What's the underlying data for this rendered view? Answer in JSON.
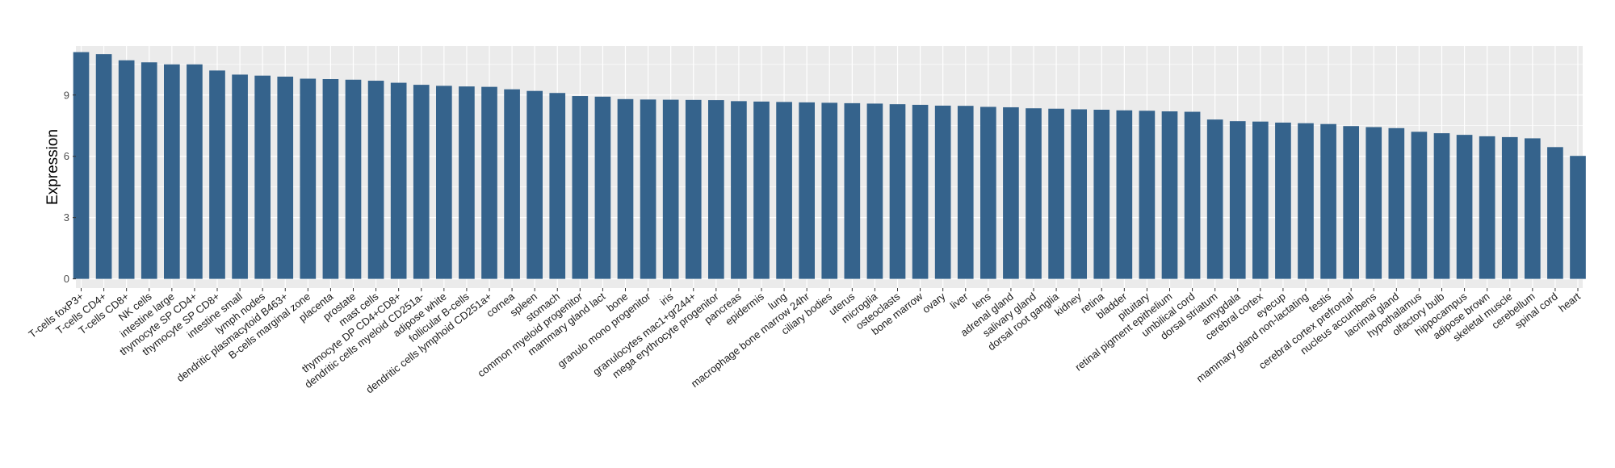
{
  "chart_data": {
    "type": "bar",
    "xlabel": "",
    "ylabel": "Expression",
    "ylim": [
      -0.45,
      11.4
    ],
    "yticks": [
      0,
      3,
      6,
      9
    ],
    "grid": true,
    "legend": "none",
    "colors": {
      "bar": "#35638C",
      "panel": "#EBEBEB",
      "grid": "#FFFFFF"
    },
    "categories": [
      "T-cells foxP3+",
      "T-cells CD4+",
      "T-cells CD8+",
      "NK cells",
      "intestine large",
      "thymocyte SP CD4+",
      "thymocyte SP CD8+",
      "intestine small",
      "lymph nodes",
      "dendritic plasmacytoid B463+",
      "B-cells marginal zone",
      "placenta",
      "prostate",
      "mast cells",
      "thymocyte DP CD4+CD8+",
      "dendritic cells myeloid CD251a-",
      "adipose white",
      "follicular B-cells",
      "dendritic cells lymphoid CD251a+",
      "cornea",
      "spleen",
      "stomach",
      "common myeloid progenitor",
      "mammary gland  lact",
      "bone",
      "granulo mono progenitor",
      "iris",
      "granulocytes mac1+gr244+",
      "mega erythrocyte progenitor",
      "pancreas",
      "epidermis",
      "lung",
      "macrophage bone marrow 24hr",
      "ciliary bodies",
      "uterus",
      "microglia",
      "osteoclasts",
      "bone marrow",
      "ovary",
      "liver",
      "lens",
      "adrenal gland",
      "salivary gland",
      "dorsal root ganglia",
      "kidney",
      "retina",
      "bladder",
      "pituitary",
      "retinal pigment epithelium",
      "umbilical cord",
      "dorsal striatum",
      "amygdala",
      "cerebral cortex",
      "eyecup",
      "mammary gland non-lactating",
      "testis",
      "cerebral cortex prefrontal",
      "nucleus accumbens",
      "lacrimal gland",
      "hypothalamus",
      "olfactory bulb",
      "hippocampus",
      "adipose brown",
      "skeletal muscle",
      "cerebellum",
      "spinal cord",
      "heart"
    ],
    "values": [
      11.1,
      11.0,
      10.7,
      10.6,
      10.5,
      10.5,
      10.2,
      10.0,
      9.95,
      9.9,
      9.8,
      9.78,
      9.75,
      9.7,
      9.6,
      9.5,
      9.45,
      9.42,
      9.4,
      9.28,
      9.2,
      9.1,
      8.95,
      8.92,
      8.8,
      8.78,
      8.77,
      8.76,
      8.75,
      8.7,
      8.68,
      8.66,
      8.64,
      8.62,
      8.6,
      8.58,
      8.55,
      8.52,
      8.48,
      8.47,
      8.42,
      8.4,
      8.35,
      8.33,
      8.3,
      8.28,
      8.25,
      8.23,
      8.2,
      8.18,
      7.8,
      7.72,
      7.7,
      7.65,
      7.62,
      7.58,
      7.48,
      7.43,
      7.38,
      7.2,
      7.13,
      7.05,
      6.98,
      6.94,
      6.88,
      6.45,
      6.02
    ]
  }
}
